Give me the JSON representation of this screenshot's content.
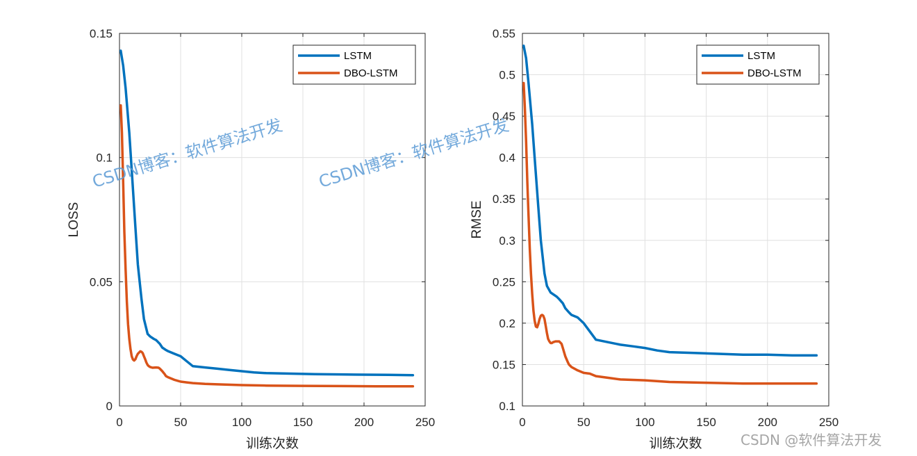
{
  "colors": {
    "lstm": "#0072bd",
    "dbo_lstm": "#d95319",
    "grid": "#e0e0e0",
    "axis": "#262626",
    "watermark": "#5b9bd5"
  },
  "watermark": {
    "text": "CSDN博客：软件算法开发",
    "corner": "CSDN @软件算法开发"
  },
  "chart_data": [
    {
      "type": "line",
      "xlabel": "训练次数",
      "ylabel": "LOSS",
      "xlim": [
        0,
        250
      ],
      "ylim": [
        0,
        0.15
      ],
      "xticks": [
        0,
        50,
        100,
        150,
        200,
        250
      ],
      "yticks": [
        0,
        0.05,
        0.1,
        0.15
      ],
      "xtick_labels": [
        "0",
        "50",
        "100",
        "150",
        "200",
        "250"
      ],
      "ytick_labels": [
        "0",
        "0.05",
        "0.1",
        "0.15"
      ],
      "grid": true,
      "legend_position": "top-right",
      "series": [
        {
          "name": "LSTM",
          "color_key": "lstm",
          "x": [
            1,
            3,
            5,
            8,
            10,
            13,
            15,
            18,
            20,
            23,
            25,
            28,
            30,
            33,
            35,
            38,
            40,
            45,
            50,
            55,
            60,
            70,
            80,
            90,
            100,
            110,
            120,
            140,
            160,
            180,
            200,
            220,
            240
          ],
          "y": [
            0.143,
            0.137,
            0.128,
            0.11,
            0.095,
            0.072,
            0.057,
            0.043,
            0.035,
            0.029,
            0.028,
            0.027,
            0.0265,
            0.025,
            0.0235,
            0.0225,
            0.022,
            0.021,
            0.02,
            0.018,
            0.016,
            0.0155,
            0.015,
            0.0145,
            0.014,
            0.0135,
            0.0132,
            0.013,
            0.0128,
            0.0127,
            0.0126,
            0.0125,
            0.0124
          ]
        },
        {
          "name": "DBO-LSTM",
          "color_key": "dbo_lstm",
          "x": [
            1,
            2,
            3,
            4,
            5,
            6,
            7,
            8,
            9,
            10,
            11,
            12,
            13,
            14,
            15,
            16,
            17,
            18,
            19,
            20,
            21,
            22,
            23,
            24,
            25,
            27,
            30,
            32,
            33,
            35,
            37,
            38,
            40,
            45,
            50,
            55,
            60,
            70,
            80,
            100,
            120,
            150,
            180,
            210,
            240
          ],
          "y": [
            0.121,
            0.11,
            0.09,
            0.07,
            0.055,
            0.042,
            0.033,
            0.027,
            0.023,
            0.02,
            0.0187,
            0.0183,
            0.0188,
            0.02,
            0.021,
            0.0215,
            0.022,
            0.0218,
            0.0213,
            0.02,
            0.0188,
            0.0175,
            0.0165,
            0.016,
            0.0157,
            0.0154,
            0.0155,
            0.0154,
            0.015,
            0.014,
            0.0128,
            0.012,
            0.0115,
            0.0105,
            0.0098,
            0.0095,
            0.0092,
            0.0089,
            0.0087,
            0.0084,
            0.0082,
            0.0081,
            0.008,
            0.0079,
            0.0079
          ]
        }
      ]
    },
    {
      "type": "line",
      "xlabel": "训练次数",
      "ylabel": "RMSE",
      "xlim": [
        0,
        250
      ],
      "ylim": [
        0.1,
        0.55
      ],
      "xticks": [
        0,
        50,
        100,
        150,
        200,
        250
      ],
      "yticks": [
        0.1,
        0.15,
        0.2,
        0.25,
        0.3,
        0.35,
        0.4,
        0.45,
        0.5,
        0.55
      ],
      "xtick_labels": [
        "0",
        "50",
        "100",
        "150",
        "200",
        "250"
      ],
      "ytick_labels": [
        "0.1",
        "0.15",
        "0.2",
        "0.25",
        "0.3",
        "0.35",
        "0.4",
        "0.45",
        "0.5",
        "0.55"
      ],
      "grid": true,
      "legend_position": "top-right",
      "series": [
        {
          "name": "LSTM",
          "color_key": "lstm",
          "x": [
            1,
            3,
            5,
            8,
            10,
            13,
            15,
            18,
            20,
            23,
            25,
            28,
            30,
            33,
            35,
            38,
            40,
            45,
            50,
            55,
            60,
            70,
            80,
            90,
            100,
            110,
            120,
            140,
            160,
            180,
            200,
            220,
            240
          ],
          "y": [
            0.535,
            0.52,
            0.49,
            0.44,
            0.4,
            0.34,
            0.3,
            0.26,
            0.245,
            0.237,
            0.235,
            0.232,
            0.229,
            0.224,
            0.218,
            0.213,
            0.21,
            0.207,
            0.2,
            0.19,
            0.18,
            0.177,
            0.174,
            0.172,
            0.17,
            0.167,
            0.165,
            0.164,
            0.163,
            0.162,
            0.162,
            0.161,
            0.161
          ]
        },
        {
          "name": "DBO-LSTM",
          "color_key": "dbo_lstm",
          "x": [
            1,
            2,
            3,
            4,
            5,
            6,
            7,
            8,
            9,
            10,
            11,
            12,
            13,
            14,
            15,
            16,
            17,
            18,
            19,
            20,
            21,
            22,
            23,
            24,
            25,
            27,
            30,
            32,
            33,
            35,
            37,
            38,
            40,
            45,
            50,
            55,
            60,
            70,
            80,
            100,
            120,
            150,
            180,
            210,
            240
          ],
          "y": [
            0.49,
            0.46,
            0.42,
            0.37,
            0.33,
            0.29,
            0.26,
            0.235,
            0.215,
            0.203,
            0.196,
            0.195,
            0.199,
            0.205,
            0.209,
            0.21,
            0.209,
            0.205,
            0.197,
            0.188,
            0.181,
            0.178,
            0.176,
            0.176,
            0.177,
            0.178,
            0.178,
            0.175,
            0.17,
            0.16,
            0.153,
            0.15,
            0.147,
            0.143,
            0.14,
            0.139,
            0.136,
            0.134,
            0.132,
            0.131,
            0.129,
            0.128,
            0.127,
            0.127,
            0.127
          ]
        }
      ]
    }
  ]
}
